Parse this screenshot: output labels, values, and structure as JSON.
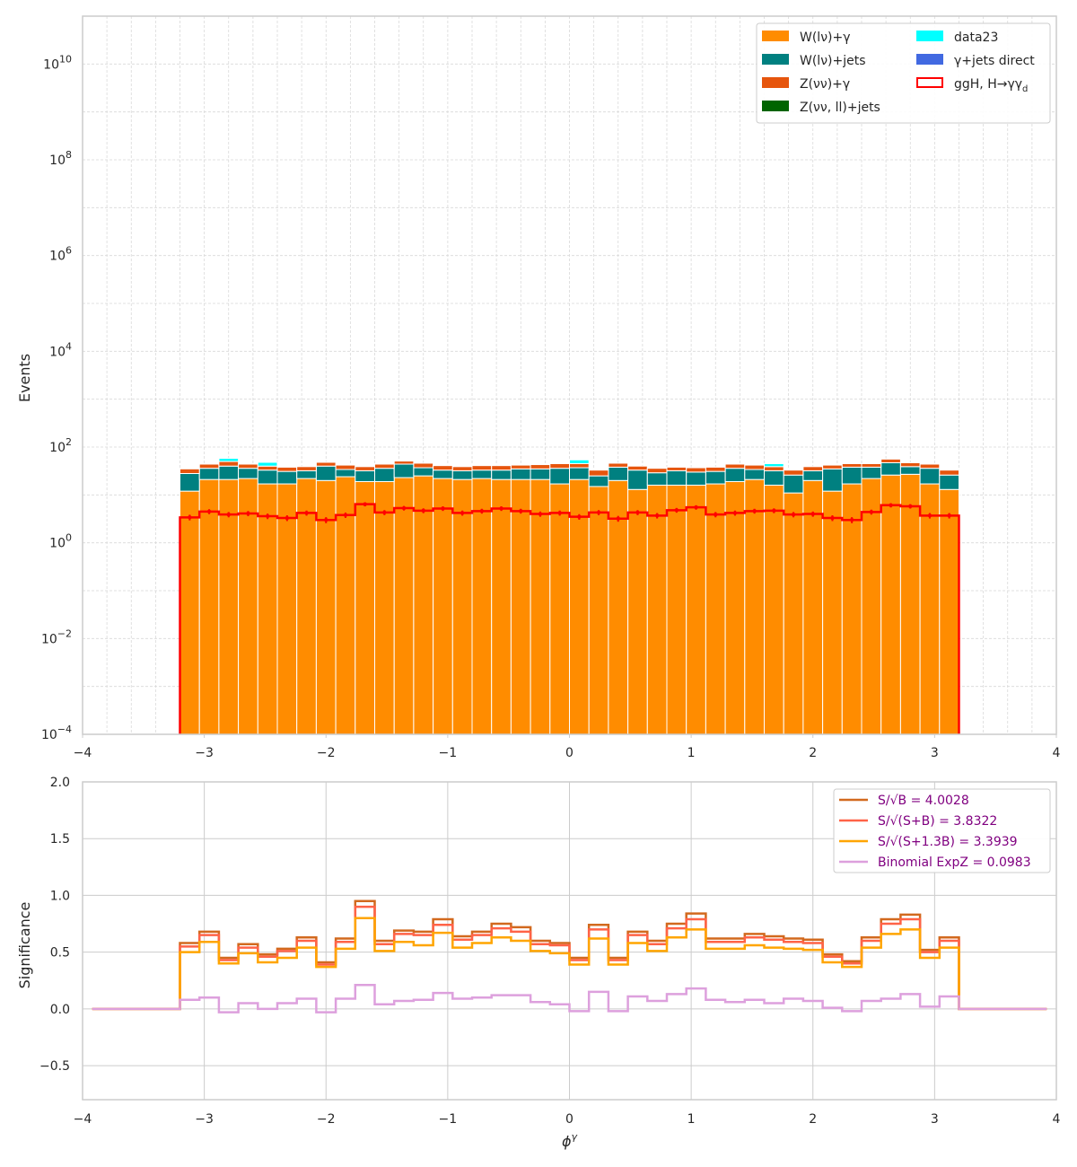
{
  "chart_data": [
    {
      "type": "bar",
      "subtype": "stacked-histogram-log",
      "ylabel": "Events",
      "xlabel": "",
      "xlim": [
        -4,
        4
      ],
      "ylim": [
        0.0001,
        100000000000
      ],
      "yscale": "log",
      "grid": true,
      "legend_position": "top-right",
      "xticks": [
        -4,
        -3,
        -2,
        -1,
        0,
        1,
        2,
        3,
        4
      ],
      "xtick_labels": [
        "−4",
        "−3",
        "−2",
        "−1",
        "0",
        "1",
        "2",
        "3",
        "4"
      ],
      "yticks": [
        0.0001,
        0.01,
        1,
        100,
        10000,
        1000000,
        100000000,
        10000000000
      ],
      "ytick_labels": [
        {
          "base": "10",
          "exp": "−4"
        },
        {
          "base": "10",
          "exp": "−2"
        },
        {
          "base": "10",
          "exp": "0"
        },
        {
          "base": "10",
          "exp": "2"
        },
        {
          "base": "10",
          "exp": "4"
        },
        {
          "base": "10",
          "exp": "6"
        },
        {
          "base": "10",
          "exp": "8"
        },
        {
          "base": "10",
          "exp": "10"
        }
      ],
      "bin_range": [
        -3.2,
        3.2
      ],
      "nbins": 40,
      "series": [
        {
          "name": "W(lν)+γ",
          "color": "#ff8c00",
          "values": [
            12,
            21,
            21,
            22,
            17,
            17,
            22,
            20,
            24,
            19,
            19,
            23,
            25,
            22,
            21,
            22,
            21,
            21,
            21,
            17,
            21,
            15,
            20,
            13,
            16,
            16,
            16,
            17,
            19,
            21,
            16,
            11,
            20,
            12,
            17,
            22,
            26,
            27,
            17,
            13
          ]
        },
        {
          "name": "W(lν)+jets",
          "color": "#008080",
          "values": [
            16,
            15,
            19,
            14,
            16,
            14,
            10,
            20,
            10,
            13,
            17,
            21,
            12,
            11,
            11,
            11,
            12,
            14,
            14,
            19,
            16,
            10,
            18,
            20,
            13,
            16,
            14,
            14,
            17,
            13,
            16,
            15,
            12,
            23,
            21,
            16,
            21,
            12,
            19,
            13
          ]
        },
        {
          "name": "Z(νν)+γ",
          "color": "#e6550d",
          "values": [
            7,
            8,
            10,
            8,
            7,
            7,
            7,
            8,
            8,
            7,
            8,
            7,
            9,
            8,
            7,
            8,
            8,
            7,
            8,
            9,
            8,
            8,
            8,
            7,
            7,
            6,
            7,
            7,
            8,
            8,
            7,
            7,
            7,
            7,
            7,
            7,
            9,
            8,
            8,
            7
          ]
        },
        {
          "name": "Z(νν, ll)+jets",
          "color": "#006400",
          "values": [
            0,
            0,
            0,
            0,
            0,
            0,
            0,
            0,
            0,
            0,
            0,
            0,
            0,
            0,
            0,
            0,
            0,
            0,
            0,
            0,
            0,
            0,
            0,
            0,
            0,
            0,
            0,
            0,
            0,
            0,
            0,
            0,
            0,
            0,
            0,
            0,
            0,
            0,
            0,
            0
          ]
        },
        {
          "name": "γ+jets direct",
          "color": "#4169e1",
          "values": [
            0,
            0,
            0,
            0,
            0,
            0,
            0,
            0.5,
            0,
            0,
            0,
            0,
            0,
            0,
            0,
            0,
            0,
            0,
            0,
            0,
            0,
            0,
            0,
            0,
            0,
            0,
            0,
            0,
            0,
            0,
            0,
            0,
            0,
            0,
            0,
            0,
            0,
            0,
            0,
            0
          ]
        },
        {
          "name": "data23",
          "color": "#00ffff",
          "values": [
            0,
            0,
            8,
            0,
            8,
            0,
            0,
            0,
            0,
            0,
            0,
            0,
            0,
            0,
            0,
            0,
            0,
            0,
            0,
            0,
            9,
            0,
            0,
            0,
            0,
            0,
            0,
            0,
            0,
            0,
            6,
            0,
            0,
            0,
            0,
            0,
            0,
            0,
            0,
            0
          ]
        }
      ],
      "signal": {
        "name": "ggH, H→γγ",
        "name_sub": "d",
        "color": "#ff0000",
        "values": [
          3.4,
          4.5,
          3.9,
          4.1,
          3.6,
          3.3,
          4.2,
          3.0,
          3.8,
          6.4,
          4.3,
          5.3,
          4.7,
          5.2,
          4.2,
          4.6,
          5.2,
          4.6,
          4.0,
          4.2,
          3.5,
          4.3,
          3.2,
          4.3,
          3.7,
          4.8,
          5.5,
          3.9,
          4.2,
          4.6,
          4.7,
          3.9,
          4.0,
          3.3,
          3.0,
          4.4,
          6.1,
          5.8,
          3.7,
          3.7
        ]
      },
      "legend": [
        {
          "label": "W(lν)+γ",
          "color": "#ff8c00",
          "kind": "fill"
        },
        {
          "label": "data23",
          "color": "#00ffff",
          "kind": "fill"
        },
        {
          "label": "W(lν)+jets",
          "color": "#008080",
          "kind": "fill"
        },
        {
          "label": "γ+jets direct",
          "color": "#4169e1",
          "kind": "fill"
        },
        {
          "label": "Z(νν)+γ",
          "color": "#e6550d",
          "kind": "fill"
        },
        {
          "label": "ggH, H→γγ",
          "sub": "d",
          "color": "#ff0000",
          "kind": "outline"
        },
        {
          "label": "Z(νν, ll)+jets",
          "color": "#006400",
          "kind": "fill"
        }
      ]
    },
    {
      "type": "line",
      "subtype": "step",
      "ylabel": "Significance",
      "xlabel": "ϕ",
      "xlabel_sup": "γ",
      "xlim": [
        -4,
        4
      ],
      "ylim": [
        -0.8,
        2.0
      ],
      "grid": true,
      "legend_position": "top-right",
      "xticks": [
        -4,
        -3,
        -2,
        -1,
        0,
        1,
        2,
        3,
        4
      ],
      "xtick_labels": [
        "−4",
        "−3",
        "−2",
        "−1",
        "0",
        "1",
        "2",
        "3",
        "4"
      ],
      "yticks": [
        -0.5,
        0.0,
        0.5,
        1.0,
        1.5,
        2.0
      ],
      "ytick_labels": [
        "−0.5",
        "0.0",
        "0.5",
        "1.0",
        "1.5",
        "2.0"
      ],
      "x_edges_outer": [
        -3.92,
        3.92
      ],
      "bin_range": [
        -3.2,
        3.2
      ],
      "nbins": 40,
      "series": [
        {
          "name": "S/√B = 4.0028",
          "color": "#d2691e",
          "values": [
            0.58,
            0.68,
            0.45,
            0.57,
            0.48,
            0.53,
            0.63,
            0.41,
            0.62,
            0.95,
            0.6,
            0.69,
            0.68,
            0.79,
            0.64,
            0.68,
            0.75,
            0.72,
            0.6,
            0.58,
            0.45,
            0.74,
            0.45,
            0.68,
            0.6,
            0.75,
            0.84,
            0.62,
            0.62,
            0.66,
            0.64,
            0.62,
            0.61,
            0.48,
            0.42,
            0.63,
            0.79,
            0.83,
            0.52,
            0.63
          ]
        },
        {
          "name": "S/√(S+B) = 3.8322",
          "color": "#ff6347",
          "values": [
            0.55,
            0.65,
            0.43,
            0.54,
            0.46,
            0.51,
            0.6,
            0.39,
            0.59,
            0.9,
            0.57,
            0.66,
            0.65,
            0.74,
            0.61,
            0.65,
            0.71,
            0.68,
            0.57,
            0.56,
            0.43,
            0.7,
            0.43,
            0.65,
            0.57,
            0.71,
            0.79,
            0.59,
            0.59,
            0.63,
            0.61,
            0.59,
            0.58,
            0.46,
            0.4,
            0.6,
            0.75,
            0.79,
            0.5,
            0.6
          ]
        },
        {
          "name": "S/√(S+1.3B) = 3.3939",
          "color": "#ffa500",
          "values": [
            0.5,
            0.59,
            0.4,
            0.49,
            0.41,
            0.45,
            0.54,
            0.37,
            0.53,
            0.8,
            0.51,
            0.59,
            0.56,
            0.67,
            0.54,
            0.58,
            0.63,
            0.6,
            0.51,
            0.49,
            0.39,
            0.62,
            0.39,
            0.58,
            0.51,
            0.63,
            0.7,
            0.53,
            0.53,
            0.56,
            0.54,
            0.53,
            0.52,
            0.41,
            0.37,
            0.54,
            0.66,
            0.7,
            0.45,
            0.54
          ]
        },
        {
          "name": "Binomial ExpZ = 0.0983",
          "color": "#dda0dd",
          "values": [
            0.08,
            0.1,
            -0.03,
            0.05,
            0.0,
            0.05,
            0.09,
            -0.03,
            0.09,
            0.21,
            0.04,
            0.07,
            0.08,
            0.14,
            0.09,
            0.1,
            0.12,
            0.12,
            0.06,
            0.04,
            -0.02,
            0.15,
            -0.02,
            0.11,
            0.07,
            0.13,
            0.18,
            0.08,
            0.06,
            0.08,
            0.05,
            0.09,
            0.07,
            0.01,
            -0.02,
            0.07,
            0.09,
            0.13,
            0.02,
            0.11
          ]
        }
      ]
    }
  ]
}
